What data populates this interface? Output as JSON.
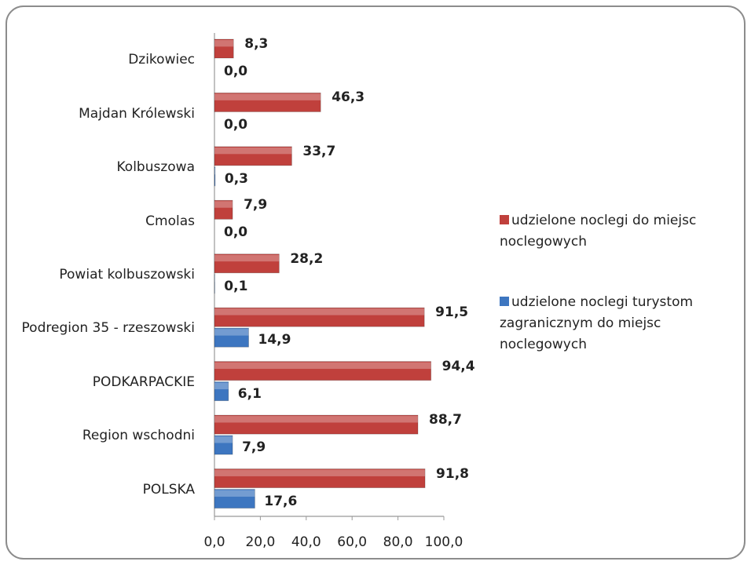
{
  "chart_data": {
    "type": "bar",
    "orientation": "horizontal",
    "categories": [
      "Dzikowiec",
      "Majdan Królewski",
      "Kolbuszowa",
      "Cmolas",
      "Powiat kolbuszowski",
      "Podregion 35 - rzeszowski",
      "PODKARPACKIE",
      "Region wschodni",
      "POLSKA"
    ],
    "series": [
      {
        "name": "udzielone noclegi do miejsc noclegowych",
        "color": "#c0403c",
        "values": [
          8.3,
          46.3,
          33.7,
          7.9,
          28.2,
          91.5,
          94.4,
          88.7,
          91.8
        ],
        "value_labels": [
          "8,3",
          "46,3",
          "33,7",
          "7,9",
          "28,2",
          "91,5",
          "94,4",
          "88,7",
          "91,8"
        ]
      },
      {
        "name": "udzielone noclegi turystom zagranicznym do miejsc noclegowych",
        "color": "#3d76c0",
        "values": [
          0.0,
          0.0,
          0.3,
          0.0,
          0.1,
          14.9,
          6.1,
          7.9,
          17.6
        ],
        "value_labels": [
          "0,0",
          "0,0",
          "0,3",
          "0,0",
          "0,1",
          "14,9",
          "6,1",
          "7,9",
          "17,6"
        ]
      }
    ],
    "xlim": [
      0,
      100
    ],
    "xticks": [
      {
        "value": 0,
        "label": "0,0"
      },
      {
        "value": 20,
        "label": "20,0"
      },
      {
        "value": 40,
        "label": "40,0"
      },
      {
        "value": 60,
        "label": "60,0"
      },
      {
        "value": 80,
        "label": "80,0"
      },
      {
        "value": 100,
        "label": "100,0"
      }
    ],
    "legend": "right"
  }
}
